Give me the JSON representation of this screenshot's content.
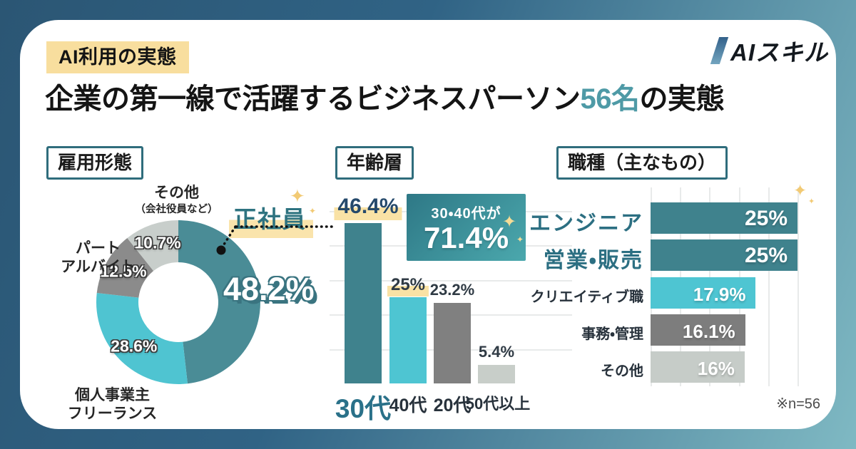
{
  "header": {
    "badge": "AI利用の実態",
    "title_prefix": "企業の第一線で活躍するビジネスパーソン",
    "title_highlight": "56名",
    "title_suffix": "の実態",
    "logo_text": "AIスキル"
  },
  "footnote": "※n=56",
  "colors": {
    "accent_teal": "#4E9AA6",
    "dark_teal": "#3F828D",
    "cyan": "#4EC5D2",
    "dark_gray": "#808080",
    "light_gray": "#C8CEC9",
    "highlight_yellow": "#F9E2A5",
    "badge_yellow": "#F8DE9E"
  },
  "chart_data": [
    {
      "id": "employment",
      "type": "pie",
      "donut": true,
      "title": "雇用形態",
      "slices": [
        {
          "label": "正社員",
          "value": 48.2,
          "display": "48.2%",
          "color": "#4A8C96",
          "emphasis": true
        },
        {
          "label": "個人事業主・フリーランス",
          "value": 28.6,
          "display": "28.6%",
          "color": "#4FC4D1",
          "emphasis": false
        },
        {
          "label": "パート・アルバイト",
          "value": 12.5,
          "display": "12.5%",
          "color": "#8B8B8B",
          "emphasis": false
        },
        {
          "label": "その他（会社役員など）",
          "value": 10.7,
          "display": "10.7%",
          "color": "#C8CECB",
          "emphasis": false
        }
      ],
      "outside_labels": {
        "sonota": "その他",
        "sonota_sub": "（会社役員など）",
        "part_line1": "パート",
        "part_line2": "アルバイト",
        "kojin_line1": "個人事業主",
        "kojin_line2": "フリーランス",
        "seishain": "正社員",
        "seishain_value": "48.2%"
      }
    },
    {
      "id": "age",
      "type": "bar",
      "title": "年齢層",
      "categories": [
        "30代",
        "40代",
        "20代",
        "50代以上"
      ],
      "values": [
        46.4,
        25,
        23.2,
        5.4
      ],
      "value_labels": [
        "46.4%",
        "25%",
        "23.2%",
        "5.4%"
      ],
      "bar_colors": [
        "#3F828D",
        "#4EC5D2",
        "#808080",
        "#C8CEC9"
      ],
      "emphasized": [
        true,
        false,
        false,
        false
      ],
      "value_highlighted": [
        true,
        true,
        false,
        false
      ],
      "ylim": [
        0,
        50
      ],
      "grid_step_percent": 10,
      "grid": true,
      "callout": {
        "line1": "30・40代が",
        "line2": "71.4%"
      }
    },
    {
      "id": "job",
      "type": "bar-horizontal",
      "title": "職種（主なもの）",
      "categories": [
        "エンジニア",
        "営業・販売",
        "クリエイティブ職",
        "事務・管理",
        "その他"
      ],
      "values": [
        25,
        25,
        17.9,
        16.1,
        16
      ],
      "value_labels": [
        "25%",
        "25%",
        "17.9%",
        "16.1%",
        "16%"
      ],
      "bar_colors": [
        "#3F828D",
        "#3F828D",
        "#4EC5D2",
        "#7D7D7D",
        "#C6CCC8"
      ],
      "emphasized": [
        true,
        true,
        false,
        false,
        false
      ],
      "xlim": [
        0,
        25
      ],
      "grid_step_percent": 5,
      "grid": true
    }
  ]
}
